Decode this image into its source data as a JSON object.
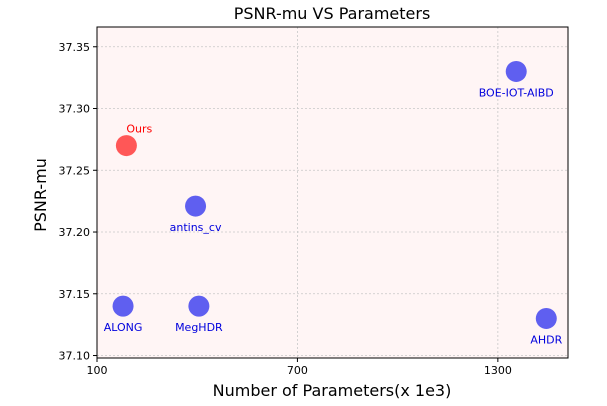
{
  "chart_data": {
    "type": "scatter",
    "title": "PSNR-mu VS Parameters",
    "xlabel": "Number of Parameters(x 1e3)",
    "ylabel": "PSNR-mu",
    "xlim": [
      100,
      1510
    ],
    "ylim": [
      37.098,
      37.366
    ],
    "xticks": [
      100,
      700,
      1300
    ],
    "xtick_labels": [
      "100",
      "700",
      "1300"
    ],
    "yticks": [
      37.1,
      37.15,
      37.2,
      37.25,
      37.3,
      37.35
    ],
    "ytick_labels": [
      "37.10",
      "37.15",
      "37.20",
      "37.25",
      "37.30",
      "37.35"
    ],
    "grid": true,
    "background": "#fff5f5",
    "points": [
      {
        "label": "Ours",
        "x": 188,
        "y": 37.27,
        "color": "#ff5252",
        "label_color": "#ff0000",
        "label_pos": "above"
      },
      {
        "label": "antins_cv",
        "x": 395,
        "y": 37.221,
        "color": "#5a5af0",
        "label_color": "#0000dd",
        "label_pos": "below"
      },
      {
        "label": "BOE-IOT-AIBD",
        "x": 1355,
        "y": 37.33,
        "color": "#5a5af0",
        "label_color": "#0000dd",
        "label_pos": "below"
      },
      {
        "label": "ALONG",
        "x": 178,
        "y": 37.14,
        "color": "#5a5af0",
        "label_color": "#0000dd",
        "label_pos": "below"
      },
      {
        "label": "MegHDR",
        "x": 405,
        "y": 37.14,
        "color": "#5a5af0",
        "label_color": "#0000dd",
        "label_pos": "below"
      },
      {
        "label": "AHDR",
        "x": 1445,
        "y": 37.13,
        "color": "#5a5af0",
        "label_color": "#0000dd",
        "label_pos": "below"
      }
    ]
  }
}
